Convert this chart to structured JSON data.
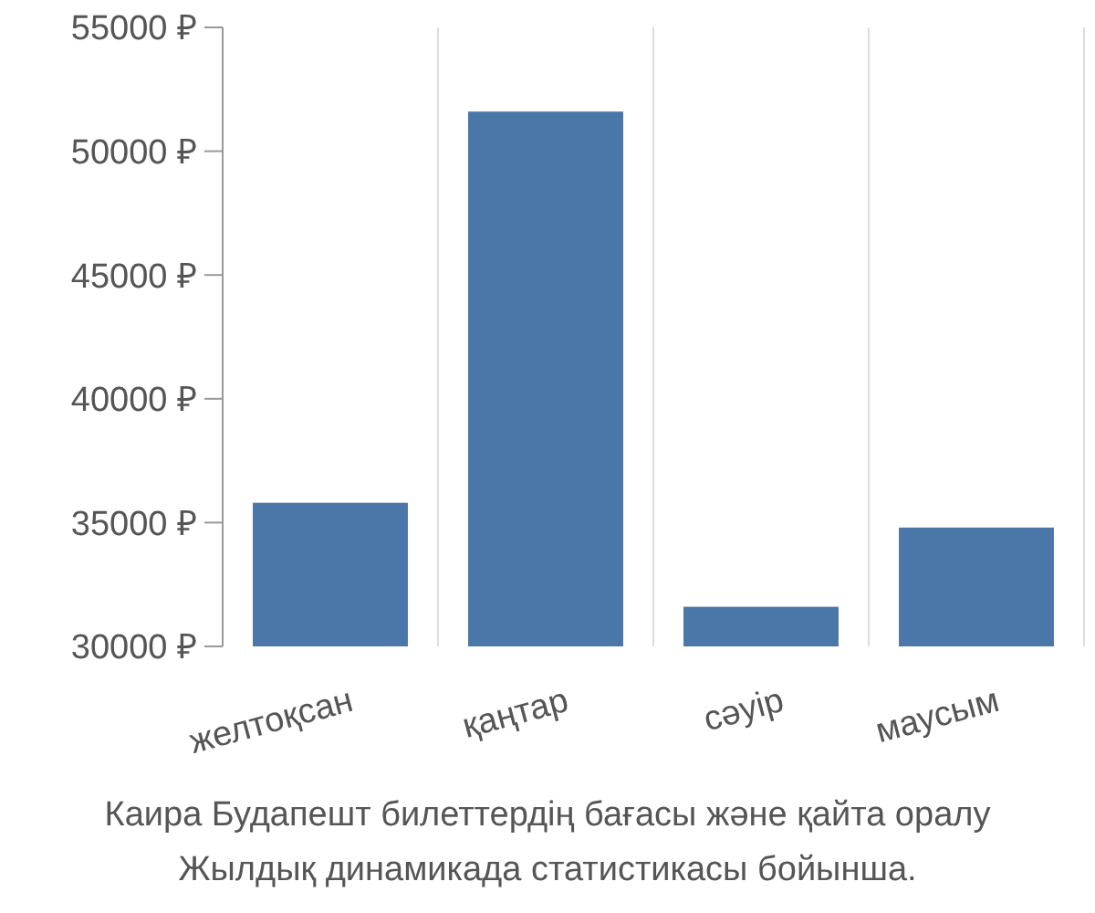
{
  "chart_data": {
    "type": "bar",
    "categories": [
      "желтоқсан",
      "қаңтар",
      "сәуір",
      "маусым"
    ],
    "values": [
      35800,
      51600,
      31600,
      34800
    ],
    "color": "#4a76a8",
    "ylim": [
      30000,
      55000
    ],
    "yticks": [
      {
        "value": 30000,
        "label": "30000 ₽"
      },
      {
        "value": 35000,
        "label": "35000 ₽"
      },
      {
        "value": 40000,
        "label": "40000 ₽"
      },
      {
        "value": 45000,
        "label": "45000 ₽"
      },
      {
        "value": 50000,
        "label": "50000 ₽"
      },
      {
        "value": 55000,
        "label": "55000 ₽"
      }
    ],
    "grid": "x",
    "annotations": [
      "Каира Будапешт билеттердің бағасы және қайта оралу",
      "Жылдық динамикада статистикасы бойынша."
    ]
  }
}
